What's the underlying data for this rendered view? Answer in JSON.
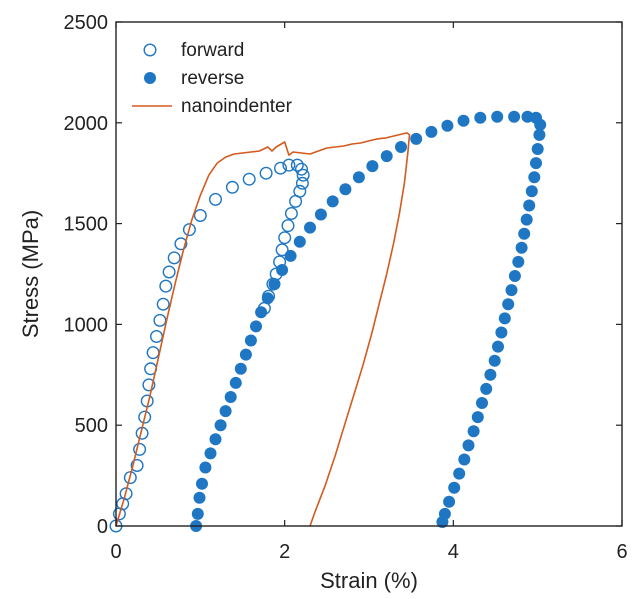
{
  "chart_data": {
    "type": "scatter",
    "title": "",
    "xlabel": "Strain (%)",
    "ylabel": "Stress (MPa)",
    "xlim": [
      0,
      6
    ],
    "ylim": [
      0,
      2500
    ],
    "xticks": [
      0,
      2,
      4,
      6
    ],
    "yticks": [
      0,
      500,
      1000,
      1500,
      2000,
      2500
    ],
    "grid": false,
    "legend_position": "top-left",
    "series": [
      {
        "name": "forward",
        "marker": "open-circle",
        "color": "#1f77c4",
        "points": [
          [
            0.0,
            0
          ],
          [
            0.04,
            60
          ],
          [
            0.08,
            110
          ],
          [
            0.12,
            160
          ],
          [
            0.17,
            240
          ],
          [
            0.25,
            300
          ],
          [
            0.28,
            380
          ],
          [
            0.31,
            460
          ],
          [
            0.34,
            540
          ],
          [
            0.37,
            620
          ],
          [
            0.39,
            700
          ],
          [
            0.41,
            780
          ],
          [
            0.44,
            860
          ],
          [
            0.48,
            940
          ],
          [
            0.52,
            1020
          ],
          [
            0.56,
            1100
          ],
          [
            0.59,
            1190
          ],
          [
            0.63,
            1260
          ],
          [
            0.69,
            1330
          ],
          [
            0.77,
            1400
          ],
          [
            0.87,
            1470
          ],
          [
            1.0,
            1540
          ],
          [
            1.18,
            1620
          ],
          [
            1.38,
            1680
          ],
          [
            1.58,
            1720
          ],
          [
            1.78,
            1750
          ],
          [
            1.95,
            1775
          ],
          [
            2.05,
            1790
          ],
          [
            2.15,
            1790
          ],
          [
            2.2,
            1770
          ],
          [
            2.22,
            1740
          ],
          [
            2.21,
            1700
          ],
          [
            2.18,
            1660
          ],
          [
            2.13,
            1610
          ],
          [
            2.08,
            1550
          ],
          [
            2.04,
            1490
          ],
          [
            2.0,
            1430
          ],
          [
            1.97,
            1370
          ],
          [
            1.94,
            1310
          ],
          [
            1.9,
            1250
          ],
          [
            1.86,
            1200
          ],
          [
            1.81,
            1140
          ],
          [
            1.76,
            1080
          ]
        ]
      },
      {
        "name": "reverse",
        "marker": "filled-circle",
        "color": "#1f77c4",
        "points": [
          [
            0.95,
            0
          ],
          [
            0.97,
            60
          ],
          [
            0.99,
            140
          ],
          [
            1.02,
            210
          ],
          [
            1.06,
            290
          ],
          [
            1.12,
            360
          ],
          [
            1.18,
            430
          ],
          [
            1.24,
            500
          ],
          [
            1.3,
            570
          ],
          [
            1.36,
            640
          ],
          [
            1.42,
            710
          ],
          [
            1.48,
            780
          ],
          [
            1.54,
            850
          ],
          [
            1.6,
            920
          ],
          [
            1.66,
            990
          ],
          [
            1.72,
            1060
          ],
          [
            1.8,
            1130
          ],
          [
            1.88,
            1200
          ],
          [
            1.97,
            1270
          ],
          [
            2.07,
            1340
          ],
          [
            2.18,
            1410
          ],
          [
            2.3,
            1480
          ],
          [
            2.43,
            1545
          ],
          [
            2.57,
            1610
          ],
          [
            2.72,
            1670
          ],
          [
            2.88,
            1730
          ],
          [
            3.04,
            1785
          ],
          [
            3.21,
            1835
          ],
          [
            3.38,
            1880
          ],
          [
            3.56,
            1920
          ],
          [
            3.74,
            1955
          ],
          [
            3.93,
            1985
          ],
          [
            4.12,
            2010
          ],
          [
            4.32,
            2025
          ],
          [
            4.52,
            2030
          ],
          [
            4.72,
            2030
          ],
          [
            4.88,
            2030
          ],
          [
            4.98,
            2025
          ],
          [
            5.03,
            1990
          ],
          [
            5.02,
            1940
          ],
          [
            5.0,
            1870
          ],
          [
            4.98,
            1800
          ],
          [
            4.96,
            1730
          ],
          [
            4.93,
            1660
          ],
          [
            4.9,
            1590
          ],
          [
            4.87,
            1520
          ],
          [
            4.84,
            1450
          ],
          [
            4.81,
            1380
          ],
          [
            4.77,
            1310
          ],
          [
            4.73,
            1240
          ],
          [
            4.69,
            1170
          ],
          [
            4.65,
            1100
          ],
          [
            4.61,
            1030
          ],
          [
            4.57,
            960
          ],
          [
            4.53,
            890
          ],
          [
            4.49,
            820
          ],
          [
            4.44,
            750
          ],
          [
            4.39,
            680
          ],
          [
            4.34,
            610
          ],
          [
            4.29,
            540
          ],
          [
            4.24,
            470
          ],
          [
            4.18,
            400
          ],
          [
            4.13,
            330
          ],
          [
            4.07,
            260
          ],
          [
            4.01,
            190
          ],
          [
            3.95,
            120
          ],
          [
            3.9,
            60
          ],
          [
            3.87,
            20
          ]
        ]
      },
      {
        "name": "nanoindenter",
        "marker": "line",
        "color": "#d45a1e",
        "points": [
          [
            0.0,
            0
          ],
          [
            0.1,
            140
          ],
          [
            0.2,
            300
          ],
          [
            0.3,
            470
          ],
          [
            0.4,
            640
          ],
          [
            0.5,
            830
          ],
          [
            0.6,
            1020
          ],
          [
            0.7,
            1200
          ],
          [
            0.8,
            1370
          ],
          [
            0.9,
            1520
          ],
          [
            1.0,
            1640
          ],
          [
            1.1,
            1740
          ],
          [
            1.2,
            1800
          ],
          [
            1.3,
            1830
          ],
          [
            1.4,
            1845
          ],
          [
            1.5,
            1850
          ],
          [
            1.6,
            1855
          ],
          [
            1.7,
            1860
          ],
          [
            1.8,
            1880
          ],
          [
            1.85,
            1860
          ],
          [
            1.9,
            1880
          ],
          [
            2.0,
            1905
          ],
          [
            2.05,
            1840
          ],
          [
            2.1,
            1855
          ],
          [
            2.2,
            1850
          ],
          [
            2.3,
            1845
          ],
          [
            2.4,
            1860
          ],
          [
            2.5,
            1875
          ],
          [
            2.6,
            1880
          ],
          [
            2.7,
            1885
          ],
          [
            2.8,
            1895
          ],
          [
            2.9,
            1900
          ],
          [
            3.0,
            1910
          ],
          [
            3.1,
            1920
          ],
          [
            3.2,
            1925
          ],
          [
            3.3,
            1935
          ],
          [
            3.4,
            1945
          ],
          [
            3.45,
            1950
          ],
          [
            3.48,
            1940
          ],
          [
            3.46,
            1850
          ],
          [
            3.42,
            1700
          ],
          [
            3.36,
            1550
          ],
          [
            3.29,
            1400
          ],
          [
            3.21,
            1250
          ],
          [
            3.12,
            1100
          ],
          [
            3.03,
            950
          ],
          [
            2.93,
            800
          ],
          [
            2.82,
            650
          ],
          [
            2.71,
            500
          ],
          [
            2.6,
            350
          ],
          [
            2.48,
            200
          ],
          [
            2.36,
            70
          ],
          [
            2.3,
            0
          ]
        ]
      }
    ]
  }
}
